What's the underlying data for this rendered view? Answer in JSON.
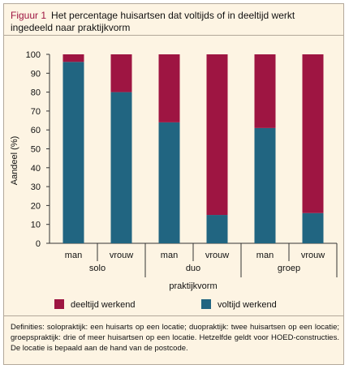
{
  "figure": {
    "label": "Figuur 1",
    "title": "Het percentage huisartsen dat voltijds of in deeltijd werkt ingedeeld naar praktijkvorm"
  },
  "colors": {
    "voltijd": "#216581",
    "deeltijd": "#9e1542",
    "background": "#fdf4e3"
  },
  "footnote": "Definities: solopraktijk: een huisarts op een locatie; duopraktijk: twee huisartsen op een locatie; groepspraktijk: drie of meer huisartsen op een locatie. Hetzelfde geldt voor HOED-constructies. De locatie is bepaald aan de hand van de postcode.",
  "chart_data": {
    "type": "bar",
    "stacked": true,
    "ylabel": "Aandeel (%)",
    "xlabel": "praktijkvorm",
    "ylim": [
      0,
      100
    ],
    "yticks": [
      0,
      10,
      20,
      30,
      40,
      50,
      60,
      70,
      80,
      90,
      100
    ],
    "categories": [
      "man",
      "vrouw",
      "man",
      "vrouw",
      "man",
      "vrouw"
    ],
    "groups": [
      "solo",
      "duo",
      "groep"
    ],
    "series": [
      {
        "name": "voltijd werkend",
        "values": [
          96,
          80,
          64,
          15,
          61,
          16
        ]
      },
      {
        "name": "deeltijd werkend",
        "values": [
          4,
          20,
          36,
          85,
          39,
          84
        ]
      }
    ],
    "legend": [
      "deeltijd werkend",
      "voltijd werkend"
    ],
    "legend_position": "bottom"
  }
}
